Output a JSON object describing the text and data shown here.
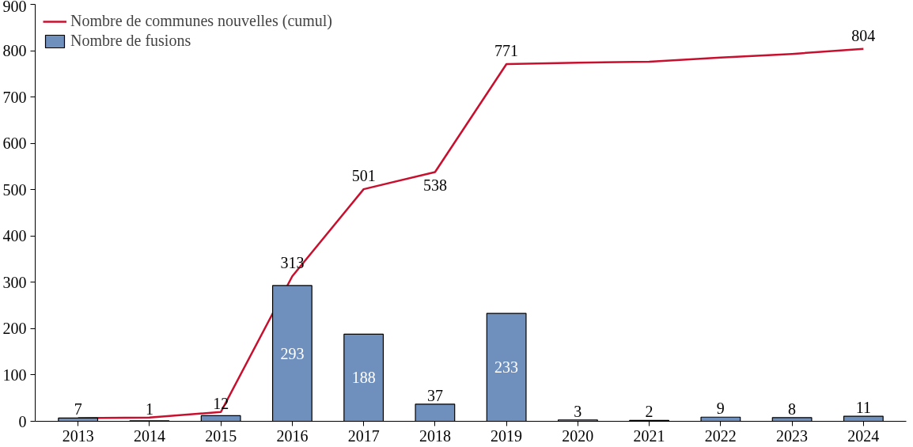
{
  "chart_data": {
    "type": "bar",
    "categories": [
      "2013",
      "2014",
      "2015",
      "2016",
      "2017",
      "2018",
      "2019",
      "2020",
      "2021",
      "2022",
      "2023",
      "2024"
    ],
    "ylim": [
      0,
      900
    ],
    "yticks": [
      0,
      100,
      200,
      300,
      400,
      500,
      600,
      700,
      800,
      900
    ],
    "grid": false,
    "legend": "top left",
    "data_labels": true,
    "series": [
      {
        "name": "Nombre de communes nouvelles (cumul)",
        "type": "line",
        "color": "#c8102e",
        "values": [
          7,
          8,
          20,
          313,
          501,
          538,
          771,
          774,
          776,
          785,
          793,
          804
        ],
        "value_labels": [
          null,
          null,
          null,
          "313",
          "501",
          "538",
          "771",
          null,
          null,
          null,
          null,
          "804"
        ]
      },
      {
        "name": "Nombre de fusions",
        "color": "#6f8fbd",
        "values": [
          7,
          1,
          12,
          293,
          188,
          37,
          233,
          3,
          2,
          9,
          8,
          11
        ]
      }
    ]
  }
}
